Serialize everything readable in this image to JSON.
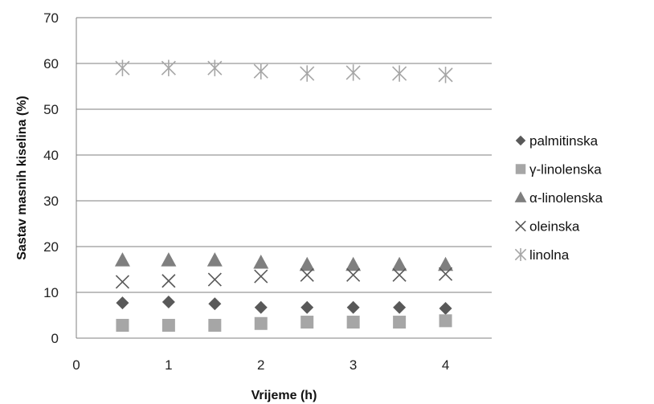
{
  "chart_data": {
    "type": "scatter",
    "xlabel": "Vrijeme (h)",
    "ylabel": "Sastav masnih kiselina (%)",
    "xlim": [
      0,
      4.5
    ],
    "ylim": [
      0,
      70
    ],
    "xticks": [
      0,
      1,
      2,
      3,
      4
    ],
    "yticks": [
      0,
      10,
      20,
      30,
      40,
      50,
      60,
      70
    ],
    "grid": "horizontal",
    "legend_position": "right",
    "x": [
      0.5,
      1,
      1.5,
      2,
      2.5,
      3,
      3.5,
      4
    ],
    "series": [
      {
        "name": "palmitinska",
        "marker": "diamond",
        "color": "#595959",
        "values": [
          7.7,
          7.9,
          7.5,
          6.7,
          6.7,
          6.7,
          6.7,
          6.5
        ]
      },
      {
        "name": "γ-linolenska",
        "marker": "square",
        "color": "#a6a6a6",
        "values": [
          2.8,
          2.8,
          2.8,
          3.2,
          3.5,
          3.5,
          3.5,
          3.8
        ]
      },
      {
        "name": "α-linolenska",
        "marker": "triangle",
        "color": "#7f7f7f",
        "values": [
          17,
          17,
          17,
          16.5,
          16,
          16,
          16,
          16
        ]
      },
      {
        "name": "oleinska",
        "marker": "x",
        "color": "#595959",
        "values": [
          12.3,
          12.5,
          12.8,
          13.5,
          13.8,
          13.8,
          13.8,
          14
        ]
      },
      {
        "name": "linolna",
        "marker": "star",
        "color": "#a6a6a6",
        "values": [
          59,
          59,
          59,
          58.3,
          57.8,
          58,
          57.8,
          57.5
        ]
      }
    ]
  }
}
